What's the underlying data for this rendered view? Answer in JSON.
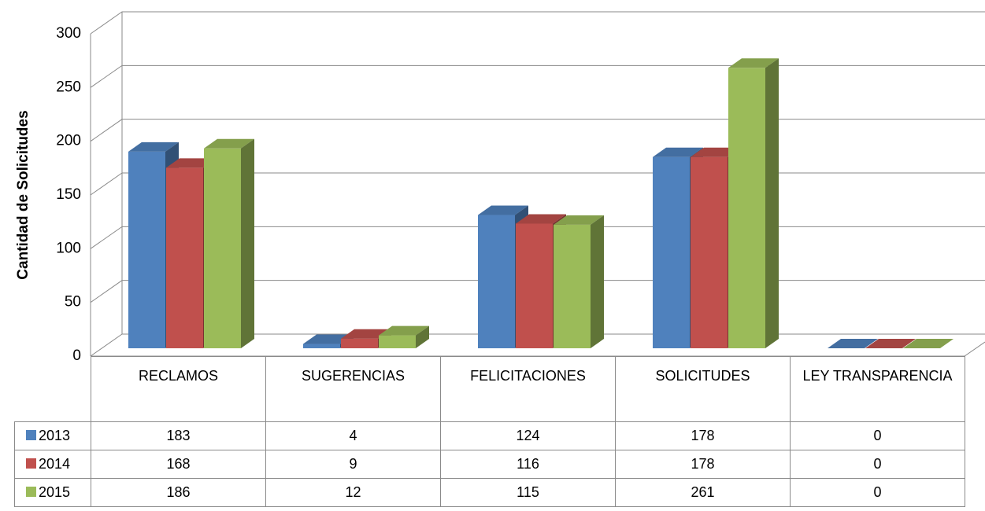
{
  "chart_data": {
    "type": "bar3d",
    "ylabel": "Cantidad de Solicitudes",
    "categories": [
      "RECLAMOS",
      "SUGERENCIAS",
      "FELICITACIONES",
      "SOLICITUDES",
      "LEY TRANSPARENCIA"
    ],
    "series": [
      {
        "name": "2013",
        "color": "#4f81bd",
        "values": [
          183,
          4,
          124,
          178,
          0
        ]
      },
      {
        "name": "2014",
        "color": "#c0504d",
        "values": [
          168,
          9,
          116,
          178,
          0
        ]
      },
      {
        "name": "2015",
        "color": "#9bbb59",
        "values": [
          186,
          12,
          115,
          261,
          0
        ]
      }
    ],
    "ylim": [
      0,
      300
    ],
    "yticks": [
      0,
      50,
      100,
      150,
      200,
      250,
      300
    ],
    "grid": true,
    "data_table": true
  }
}
